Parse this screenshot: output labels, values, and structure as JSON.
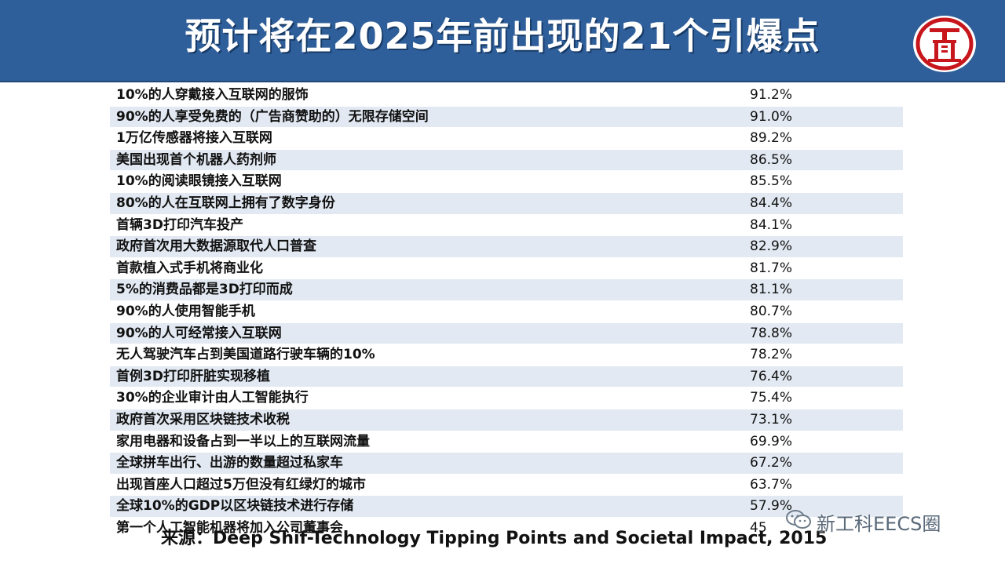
{
  "slide": {
    "title": "预计将在2025年前出现的21个引爆点",
    "source": "来源：Deep Shif-Technology Tipping Points and Societal Impact, 2015",
    "watermark": "新工科EECS圈",
    "logo_icon": "institution-seal-logo"
  },
  "colors": {
    "header_bg": "#2f5f9a",
    "row_alt_bg": "#e2e9f2",
    "logo_red": "#c8161d"
  },
  "table": {
    "rows": [
      {
        "label": "10%的人穿戴接入互联网的服饰",
        "value": "91.2%"
      },
      {
        "label": "90%的人享受免费的（广告商赞助的）无限存储空间",
        "value": "91.0%"
      },
      {
        "label": "1万亿传感器将接入互联网",
        "value": "89.2%"
      },
      {
        "label": "美国出现首个机器人药剂师",
        "value": "86.5%"
      },
      {
        "label": "10%的阅读眼镜接入互联网",
        "value": "85.5%"
      },
      {
        "label": "80%的人在互联网上拥有了数字身份",
        "value": "84.4%"
      },
      {
        "label": "首辆3D打印汽车投产",
        "value": "84.1%"
      },
      {
        "label": "政府首次用大数据源取代人口普查",
        "value": "82.9%"
      },
      {
        "label": "首款植入式手机将商业化",
        "value": "81.7%"
      },
      {
        "label": "5%的消费品都是3D打印而成",
        "value": "81.1%"
      },
      {
        "label": "90%的人使用智能手机",
        "value": "80.7%"
      },
      {
        "label": "90%的人可经常接入互联网",
        "value": "78.8%"
      },
      {
        "label": "无人驾驶汽车占到美国道路行驶车辆的10%",
        "value": "78.2%"
      },
      {
        "label": "首例3D打印肝脏实现移植",
        "value": "76.4%"
      },
      {
        "label": "30%的企业审计由人工智能执行",
        "value": "75.4%"
      },
      {
        "label": "政府首次采用区块链技术收税",
        "value": "73.1%"
      },
      {
        "label": "家用电器和设备占到一半以上的互联网流量",
        "value": "69.9%"
      },
      {
        "label": "全球拼车出行、出游的数量超过私家车",
        "value": "67.2%"
      },
      {
        "label": "出现首座人口超过5万但没有红绿灯的城市",
        "value": "63.7%"
      },
      {
        "label": "全球10%的GDP以区块链技术进行存储",
        "value": "57.9%"
      },
      {
        "label": "第一个人工智能机器将加入公司董事会",
        "value": "45"
      }
    ]
  }
}
